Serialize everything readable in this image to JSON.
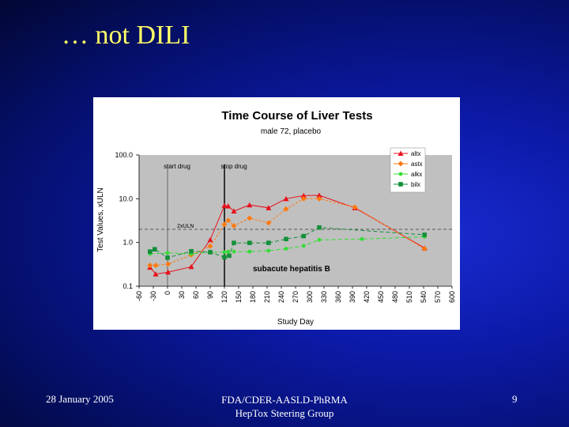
{
  "slide": {
    "title": "… not DILI",
    "footer_left": "28 January 2005",
    "footer_center_line1": "FDA/CDER-AASLD-PhRMA",
    "footer_center_line2": "HepTox Steering Group",
    "page_number": "9"
  },
  "colors": {
    "background": "#0c1aa8",
    "title": "#ffff66",
    "altx": "#e8101c",
    "astx": "#ff7a10",
    "alkx": "#33dd33",
    "bilx": "#138f38",
    "plot_bg": "#c0c0c0"
  },
  "chart_data": {
    "type": "line",
    "title": "Time Course of Liver Tests",
    "subtitle": "male 72, placebo",
    "xlabel": "Study Day",
    "ylabel": "Test Values, xULN",
    "yscale": "log",
    "ylim": [
      0.1,
      100
    ],
    "xlim": [
      -60,
      600
    ],
    "yticks": [
      0.1,
      1.0,
      10.0,
      100.0
    ],
    "ytick_labels": [
      "0.1",
      "1.0",
      "10.0",
      "100.0"
    ],
    "xticks": [
      -60,
      -30,
      0,
      30,
      60,
      90,
      120,
      150,
      180,
      210,
      240,
      270,
      300,
      330,
      360,
      390,
      420,
      450,
      480,
      510,
      540,
      570,
      600
    ],
    "xtick_labels": [
      "-60",
      "-30",
      "0",
      "30",
      "60",
      "90",
      "120",
      "150",
      "180",
      "210",
      "240",
      "270",
      "300",
      "330",
      "360",
      "390",
      "420",
      "450",
      "480",
      "510",
      "540",
      "570",
      "600"
    ],
    "series": [
      {
        "name": "altx",
        "marker": "triangle",
        "x": [
          -37,
          -25,
          1,
          50,
          90,
          120,
          128,
          140,
          173,
          213,
          250,
          287,
          320,
          395,
          542
        ],
        "y": [
          0.27,
          0.19,
          0.21,
          0.28,
          1.15,
          7.0,
          6.8,
          5.2,
          7.2,
          6.2,
          10.0,
          11.8,
          12.0,
          6.2,
          0.75
        ]
      },
      {
        "name": "astx",
        "marker": "diamond",
        "x": [
          -37,
          -25,
          1,
          50,
          90,
          120,
          128,
          140,
          173,
          213,
          250,
          287,
          320,
          395,
          542
        ],
        "y": [
          0.3,
          0.3,
          0.32,
          0.52,
          0.82,
          2.6,
          3.2,
          2.4,
          3.6,
          2.8,
          5.8,
          10.0,
          10.0,
          6.4,
          0.72
        ]
      },
      {
        "name": "alkx",
        "marker": "circle",
        "x": [
          -37,
          0,
          50,
          90,
          120,
          128,
          140,
          173,
          213,
          250,
          287,
          320,
          410,
          542
        ],
        "y": [
          0.55,
          0.58,
          0.55,
          0.6,
          0.6,
          0.62,
          0.62,
          0.62,
          0.65,
          0.72,
          0.84,
          1.15,
          1.2,
          1.35
        ]
      },
      {
        "name": "bilx",
        "marker": "square",
        "x": [
          -37,
          -27,
          0,
          50,
          90,
          120,
          130,
          140,
          173,
          213,
          250,
          287,
          320,
          542
        ],
        "y": [
          0.62,
          0.7,
          0.45,
          0.63,
          0.6,
          0.46,
          0.5,
          0.98,
          0.98,
          0.98,
          1.2,
          1.4,
          2.2,
          1.5
        ]
      }
    ],
    "reference_lines": [
      {
        "value": 2,
        "axis": "y",
        "label": "2xULN"
      },
      {
        "value": 0,
        "axis": "x",
        "label": "start drug"
      },
      {
        "value": 120,
        "axis": "x",
        "label": "stop drug"
      }
    ],
    "annotation": "subacute hepatitis B",
    "legend_position": "top-right"
  }
}
